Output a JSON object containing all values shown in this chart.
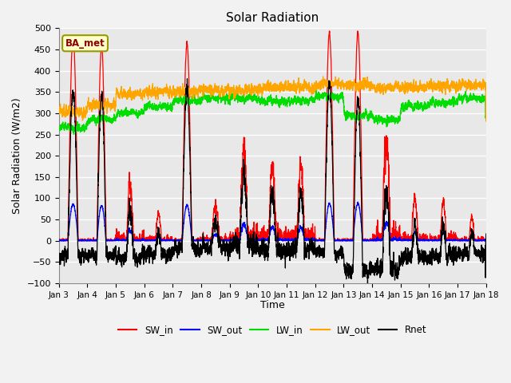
{
  "title": "Solar Radiation",
  "xlabel": "Time",
  "ylabel": "Solar Radiation (W/m2)",
  "ylim": [
    -100,
    500
  ],
  "start_day": 3,
  "end_day": 18,
  "n_points": 4320,
  "annotation_text": "BA_met",
  "colors": {
    "SW_in": "#ff0000",
    "SW_out": "#0000ff",
    "LW_in": "#00dd00",
    "LW_out": "#ffa500",
    "Rnet": "#000000"
  },
  "background_color": "#e8e8e8",
  "grid_color": "#ffffff",
  "fig_width": 6.4,
  "fig_height": 4.8,
  "dpi": 100
}
